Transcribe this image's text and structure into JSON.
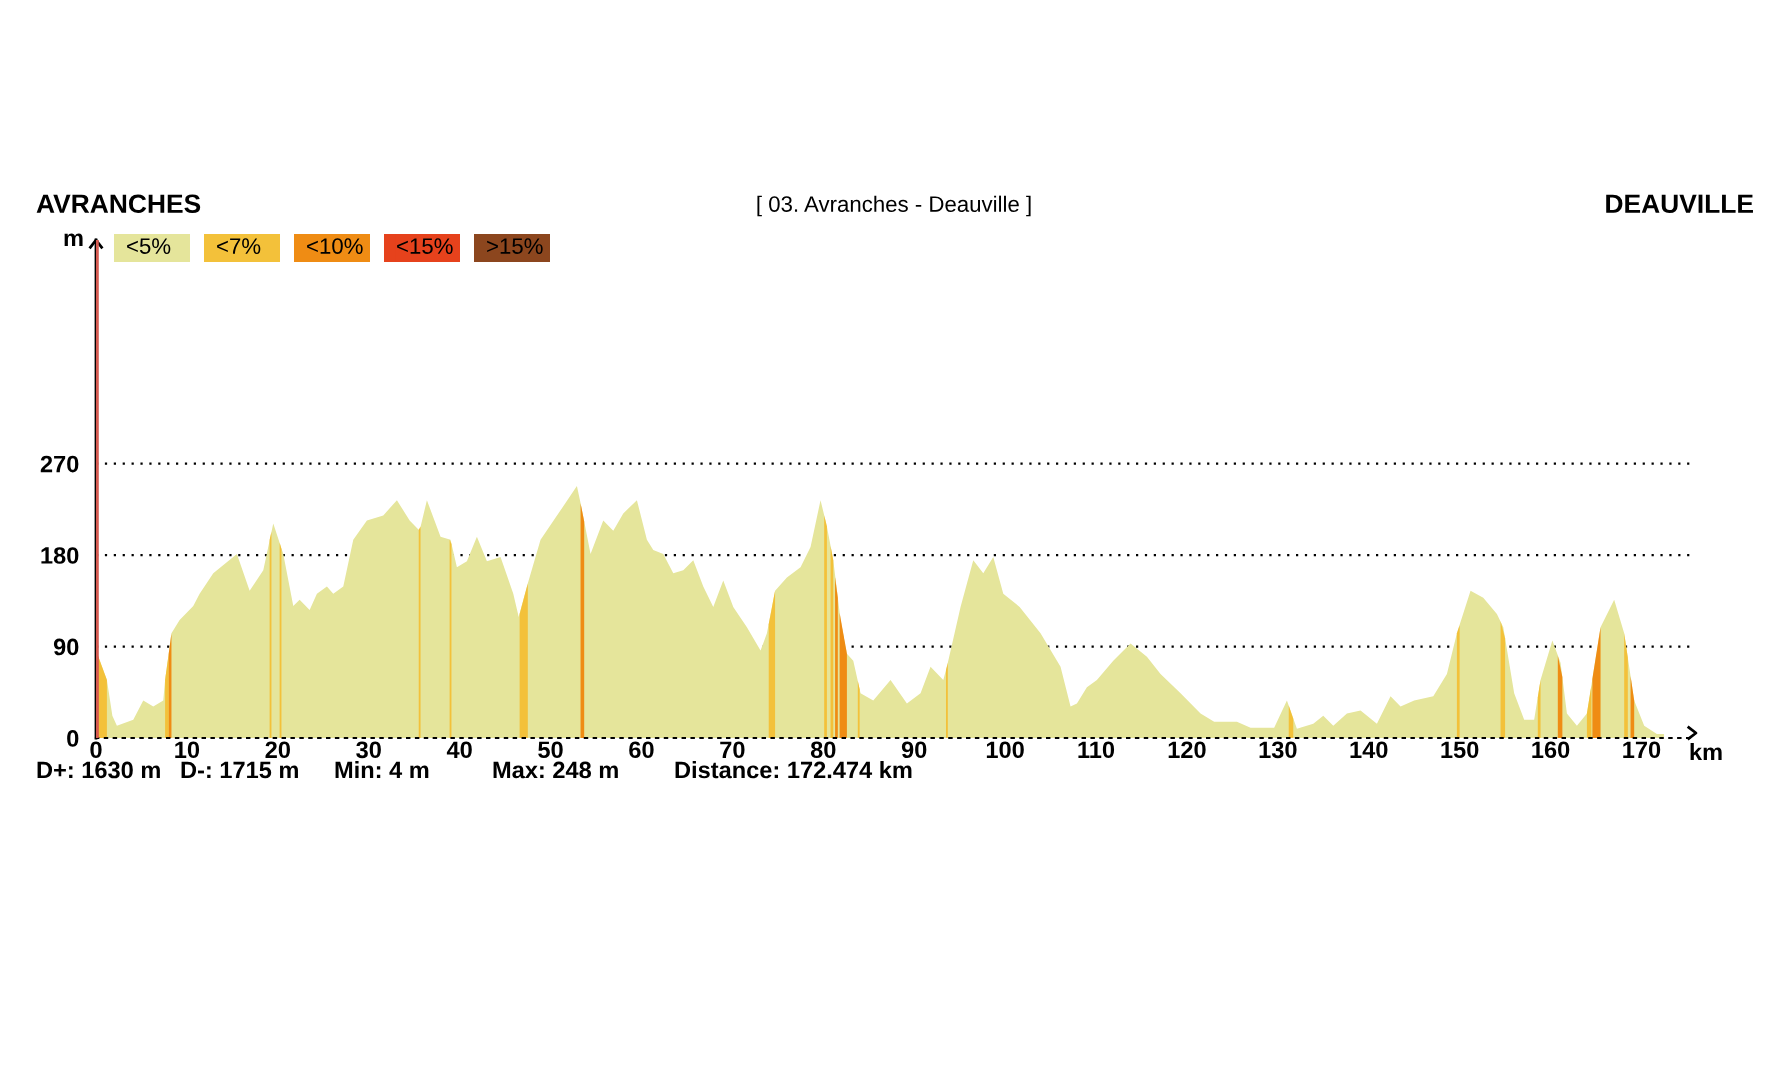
{
  "chart_data": {
    "type": "area",
    "title": "[ 03. Avranches - Deauville ]",
    "xlabel": "km",
    "ylabel": "m",
    "annotations": [
      "AVRANCHES",
      "DEAUVILLE",
      "D+: 1630 m",
      "D-: 1715 m",
      "Min: 4 m",
      "Max: 248 m",
      "Distance: 172.474 km"
    ],
    "xlim": [
      0,
      176
    ],
    "xticks": [
      0,
      10,
      20,
      30,
      40,
      50,
      60,
      70,
      80,
      90,
      100,
      110,
      120,
      130,
      140,
      150,
      160,
      170
    ],
    "ylim": [
      0,
      490
    ],
    "yticks": [
      0,
      90,
      180,
      270
    ],
    "grid": "y",
    "legend": "top left",
    "ref_lines": [
      {
        "axis": "x",
        "value": 0,
        "color": "#d65a50"
      }
    ],
    "series": [
      {
        "name": "<5%",
        "color": "#e5e59b",
        "x": [
          0,
          1.2,
          1.8,
          2.3,
          4.1,
          5.2,
          6.3,
          7.4,
          7.6,
          8.3,
          9.2,
          10.7,
          11.4,
          12.9,
          15.5,
          16.9,
          18.4,
          19.5,
          20.6,
          21.7,
          22.4,
          23.5,
          24.3,
          25.4,
          26.1,
          27.2,
          28.3,
          29.8,
          31.6,
          33.1,
          34.5,
          35.6,
          36.4,
          37.9,
          39.0,
          39.7,
          40.8,
          41.9,
          43.0,
          44.5,
          45.9,
          46.5,
          47.4,
          48.9,
          51.1,
          52.9,
          53.4,
          54.4,
          55.8,
          56.9,
          58.0,
          59.5,
          60.6,
          61.3,
          62.4,
          63.5,
          64.6,
          65.7,
          66.8,
          67.9,
          69.0,
          70.1,
          71.6,
          73.1,
          73.8,
          74.7,
          76.0,
          77.5,
          78.6,
          79.7,
          80.4,
          81.1,
          81.9,
          82.6,
          83.3,
          84.1,
          85.5,
          87.4,
          89.2,
          90.7,
          91.8,
          93.2,
          93.6,
          95.1,
          96.5,
          97.6,
          98.7,
          99.8,
          101.6,
          103.9,
          106.1,
          107.2,
          107.9,
          109.0,
          110.1,
          111.9,
          113.8,
          115.6,
          117.1,
          119.3,
          121.5,
          123.0,
          125.5,
          127.0,
          129.6,
          131.0,
          132.1,
          133.9,
          135.0,
          136.1,
          137.6,
          139.1,
          140.9,
          142.4,
          143.5,
          145.0,
          147.1,
          148.6,
          149.7,
          151.2,
          152.6,
          154.1,
          154.8,
          156.0,
          157.1,
          158.2,
          158.9,
          160.2,
          161.1,
          161.8,
          162.9,
          164.0,
          165.5,
          167.0,
          168.1,
          169.2,
          170.3,
          171.7,
          172.474
        ],
        "values": [
          86,
          57,
          22,
          12,
          18,
          37,
          31,
          37,
          57,
          103,
          116,
          130,
          142,
          162,
          181,
          145,
          165,
          211,
          181,
          130,
          136,
          126,
          142,
          149,
          142,
          149,
          195,
          214,
          219,
          234,
          214,
          204,
          234,
          198,
          195,
          168,
          174,
          198,
          174,
          178,
          142,
          119,
          149,
          195,
          224,
          248,
          227,
          181,
          214,
          204,
          221,
          234,
          195,
          185,
          181,
          162,
          165,
          175,
          149,
          129,
          155,
          129,
          109,
          86,
          103,
          145,
          158,
          168,
          188,
          234,
          208,
          175,
          116,
          83,
          76,
          44,
          37,
          57,
          34,
          44,
          70,
          57,
          70,
          129,
          175,
          162,
          178,
          142,
          129,
          103,
          70,
          31,
          34,
          50,
          57,
          76,
          93,
          80,
          63,
          44,
          24,
          16,
          16,
          10,
          10,
          37,
          9,
          14,
          22,
          12,
          24,
          27,
          14,
          41,
          31,
          37,
          41,
          63,
          103,
          145,
          138,
          122,
          109,
          44,
          18,
          18,
          57,
          96,
          74,
          24,
          12,
          24,
          109,
          136,
          103,
          37,
          12,
          4,
          4
        ]
      },
      {
        "name": "<7%",
        "color": "#f3c13a",
        "x": [
          0.3,
          1.2,
          null,
          7.6,
          8.0,
          null,
          19.1,
          19.3,
          null,
          20.2,
          20.4,
          null,
          35.5,
          35.7,
          null,
          38.9,
          39.1,
          null,
          46.6,
          47.5,
          null,
          74.0,
          74.7,
          null,
          80.1,
          80.4,
          null,
          80.8,
          81.1,
          null,
          83.8,
          84.0,
          null,
          93.5,
          93.7,
          null,
          131.2,
          131.7,
          null,
          149.7,
          150.0,
          null,
          154.5,
          155.0,
          null,
          158.6,
          158.9,
          null,
          164.0,
          164.5,
          null,
          168.1,
          168.5
        ],
        "values": [
          79,
          57,
          null,
          57,
          83,
          null,
          195,
          203,
          null,
          192,
          186,
          null,
          205,
          208,
          null,
          195,
          191,
          null,
          122,
          152,
          null,
          112,
          145,
          null,
          219,
          208,
          null,
          189,
          175,
          null,
          56,
          48,
          null,
          67,
          74,
          null,
          32,
          19,
          null,
          103,
          111,
          null,
          115,
          98,
          null,
          40,
          57,
          null,
          24,
          52,
          null,
          103,
          79
        ]
      },
      {
        "name": "<10%",
        "color": "#ef8c14",
        "x": [
          0.1,
          0.3,
          null,
          8.0,
          8.3,
          null,
          53.3,
          53.7,
          null,
          81.3,
          81.6,
          null,
          81.8,
          82.6,
          null,
          160.8,
          161.3,
          null,
          164.6,
          165.5,
          null,
          168.8,
          169.2
        ],
        "values": [
          84,
          79,
          null,
          83,
          103,
          null,
          231,
          213,
          null,
          158,
          138,
          null,
          123,
          83,
          null,
          81,
          60,
          null,
          58,
          109,
          null,
          61,
          37
        ]
      },
      {
        "name": "<15%",
        "color": "#e6421c"
      },
      {
        "name": ">15%",
        "color": "#8c461e"
      }
    ]
  }
}
